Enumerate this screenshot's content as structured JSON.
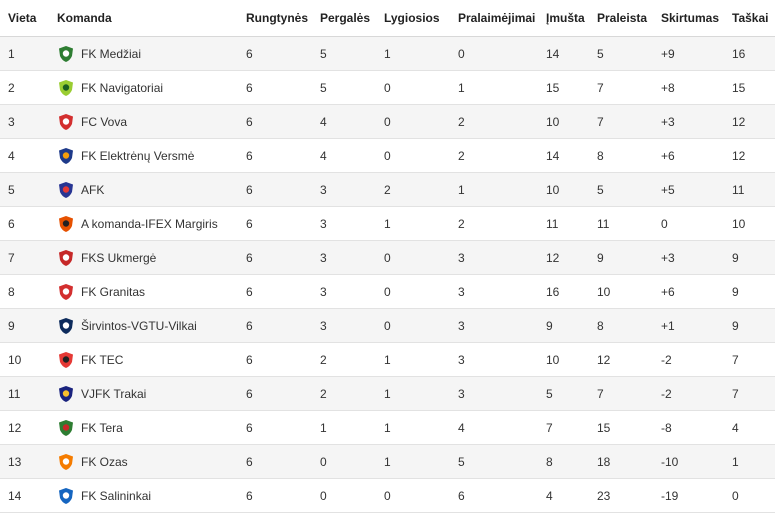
{
  "headers": {
    "pos": "Vieta",
    "team": "Komanda",
    "played": "Rungtynės",
    "wins": "Pergalės",
    "draws": "Lygiosios",
    "losses": "Pralaimėjimai",
    "gf": "Įmušta",
    "ga": "Praleista",
    "diff": "Skirtumas",
    "points": "Taškai"
  },
  "rows": [
    {
      "pos": "1",
      "team": "FK Medžiai",
      "played": "6",
      "wins": "5",
      "draws": "1",
      "losses": "0",
      "gf": "14",
      "ga": "5",
      "diff": "+9",
      "points": "16",
      "logo": "medziai-logo",
      "color": "#2e7d32",
      "accent": "#ffffff"
    },
    {
      "pos": "2",
      "team": "FK Navigatoriai",
      "played": "6",
      "wins": "5",
      "draws": "0",
      "losses": "1",
      "gf": "15",
      "ga": "7",
      "diff": "+8",
      "points": "15",
      "logo": "navigatoriai-logo",
      "color": "#9acd32",
      "accent": "#1b5e20"
    },
    {
      "pos": "3",
      "team": "FC Vova",
      "played": "6",
      "wins": "4",
      "draws": "0",
      "losses": "2",
      "gf": "10",
      "ga": "7",
      "diff": "+3",
      "points": "12",
      "logo": "vova-logo",
      "color": "#d32f2f",
      "accent": "#ffffff"
    },
    {
      "pos": "4",
      "team": "FK Elektrėnų Versmė",
      "played": "6",
      "wins": "4",
      "draws": "0",
      "losses": "2",
      "gf": "14",
      "ga": "8",
      "diff": "+6",
      "points": "12",
      "logo": "versme-logo",
      "color": "#1e3a8a",
      "accent": "#f59e0b"
    },
    {
      "pos": "5",
      "team": "AFK",
      "played": "6",
      "wins": "3",
      "draws": "2",
      "losses": "1",
      "gf": "10",
      "ga": "5",
      "diff": "+5",
      "points": "11",
      "logo": "afk-logo",
      "color": "#283593",
      "accent": "#e53935"
    },
    {
      "pos": "6",
      "team": "A komanda-IFEX Margiris",
      "played": "6",
      "wins": "3",
      "draws": "1",
      "losses": "2",
      "gf": "11",
      "ga": "11",
      "diff": "0",
      "points": "10",
      "logo": "margiris-logo",
      "color": "#e65100",
      "accent": "#212121"
    },
    {
      "pos": "7",
      "team": "FKS Ukmergė",
      "played": "6",
      "wins": "3",
      "draws": "0",
      "losses": "3",
      "gf": "12",
      "ga": "9",
      "diff": "+3",
      "points": "9",
      "logo": "ukmerge-logo",
      "color": "#c62828",
      "accent": "#ffffff"
    },
    {
      "pos": "8",
      "team": "FK Granitas",
      "played": "6",
      "wins": "3",
      "draws": "0",
      "losses": "3",
      "gf": "16",
      "ga": "10",
      "diff": "+6",
      "points": "9",
      "logo": "granitas-logo",
      "color": "#d32f2f",
      "accent": "#ffffff"
    },
    {
      "pos": "9",
      "team": "Širvintos-VGTU-Vilkai",
      "played": "6",
      "wins": "3",
      "draws": "0",
      "losses": "3",
      "gf": "9",
      "ga": "8",
      "diff": "+1",
      "points": "9",
      "logo": "vilkai-logo",
      "color": "#0d2b5c",
      "accent": "#ffffff"
    },
    {
      "pos": "10",
      "team": "FK TEC",
      "played": "6",
      "wins": "2",
      "draws": "1",
      "losses": "3",
      "gf": "10",
      "ga": "12",
      "diff": "-2",
      "points": "7",
      "logo": "tec-logo",
      "color": "#e53935",
      "accent": "#212121"
    },
    {
      "pos": "11",
      "team": "VJFK Trakai",
      "played": "6",
      "wins": "2",
      "draws": "1",
      "losses": "3",
      "gf": "5",
      "ga": "7",
      "diff": "-2",
      "points": "7",
      "logo": "trakai-logo",
      "color": "#1a237e",
      "accent": "#fbc02d"
    },
    {
      "pos": "12",
      "team": "FK Tera",
      "played": "6",
      "wins": "1",
      "draws": "1",
      "losses": "4",
      "gf": "7",
      "ga": "15",
      "diff": "-8",
      "points": "4",
      "logo": "tera-logo",
      "color": "#2e7d32",
      "accent": "#c62828"
    },
    {
      "pos": "13",
      "team": "FK Ozas",
      "played": "6",
      "wins": "0",
      "draws": "1",
      "losses": "5",
      "gf": "8",
      "ga": "18",
      "diff": "-10",
      "points": "1",
      "logo": "ozas-logo",
      "color": "#f57c00",
      "accent": "#ffffff"
    },
    {
      "pos": "14",
      "team": "FK Salininkai",
      "played": "6",
      "wins": "0",
      "draws": "0",
      "losses": "6",
      "gf": "4",
      "ga": "23",
      "diff": "-19",
      "points": "0",
      "logo": "salininkai-logo",
      "color": "#1565c0",
      "accent": "#ffffff"
    }
  ]
}
